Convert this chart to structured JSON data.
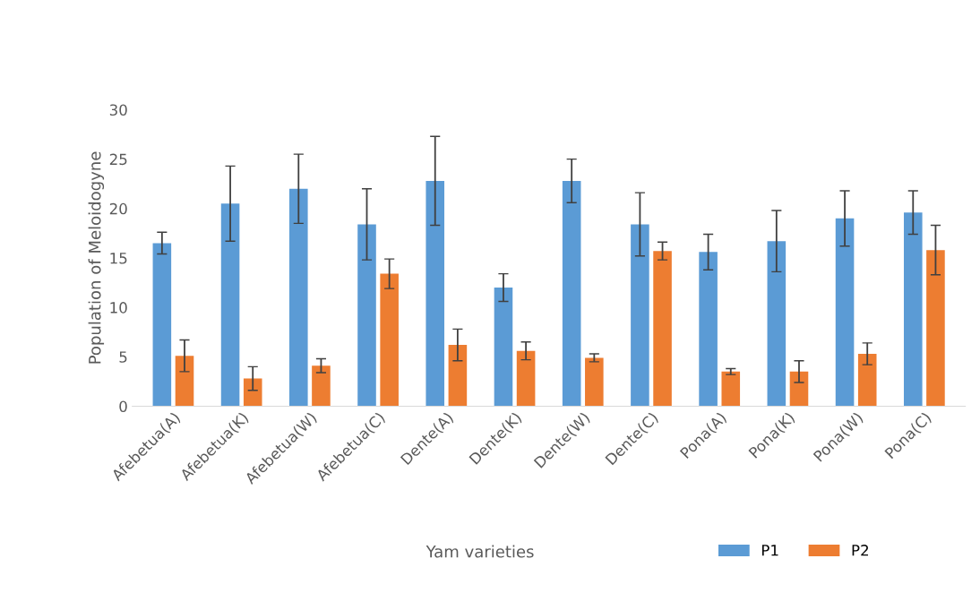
{
  "chart_data": {
    "type": "bar",
    "xlabel": "Yam varieties",
    "ylabel": "Population of Meloidogyne",
    "categories": [
      "Afebetua(A)",
      "Afebetua(K)",
      "Afebetua(W)",
      "Afebetua(C)",
      "Dente(A)",
      "Dente(K)",
      "Dente(W)",
      "Dente(C)",
      "Pona(A)",
      "Pona(K)",
      "Pona(W)",
      "Pona(C)"
    ],
    "series": [
      {
        "name": "P1",
        "color": "#5b9bd5",
        "values": [
          16.5,
          20.5,
          22.0,
          18.4,
          22.8,
          12.0,
          22.8,
          18.4,
          15.6,
          16.7,
          19.0,
          19.6
        ],
        "errors": [
          1.1,
          3.8,
          3.5,
          3.6,
          4.5,
          1.4,
          2.2,
          3.2,
          1.8,
          3.1,
          2.8,
          2.2
        ]
      },
      {
        "name": "P2",
        "color": "#ed7d31",
        "values": [
          5.1,
          2.8,
          4.1,
          13.4,
          6.2,
          5.6,
          4.9,
          15.7,
          3.5,
          3.5,
          5.3,
          15.8
        ],
        "errors": [
          1.6,
          1.2,
          0.7,
          1.5,
          1.6,
          0.9,
          0.4,
          0.9,
          0.3,
          1.1,
          1.1,
          2.5
        ]
      }
    ],
    "ylim": [
      0,
      30
    ],
    "yticks": [
      0,
      5,
      10,
      15,
      20,
      25,
      30
    ],
    "grid": false,
    "legend": "bottom"
  }
}
